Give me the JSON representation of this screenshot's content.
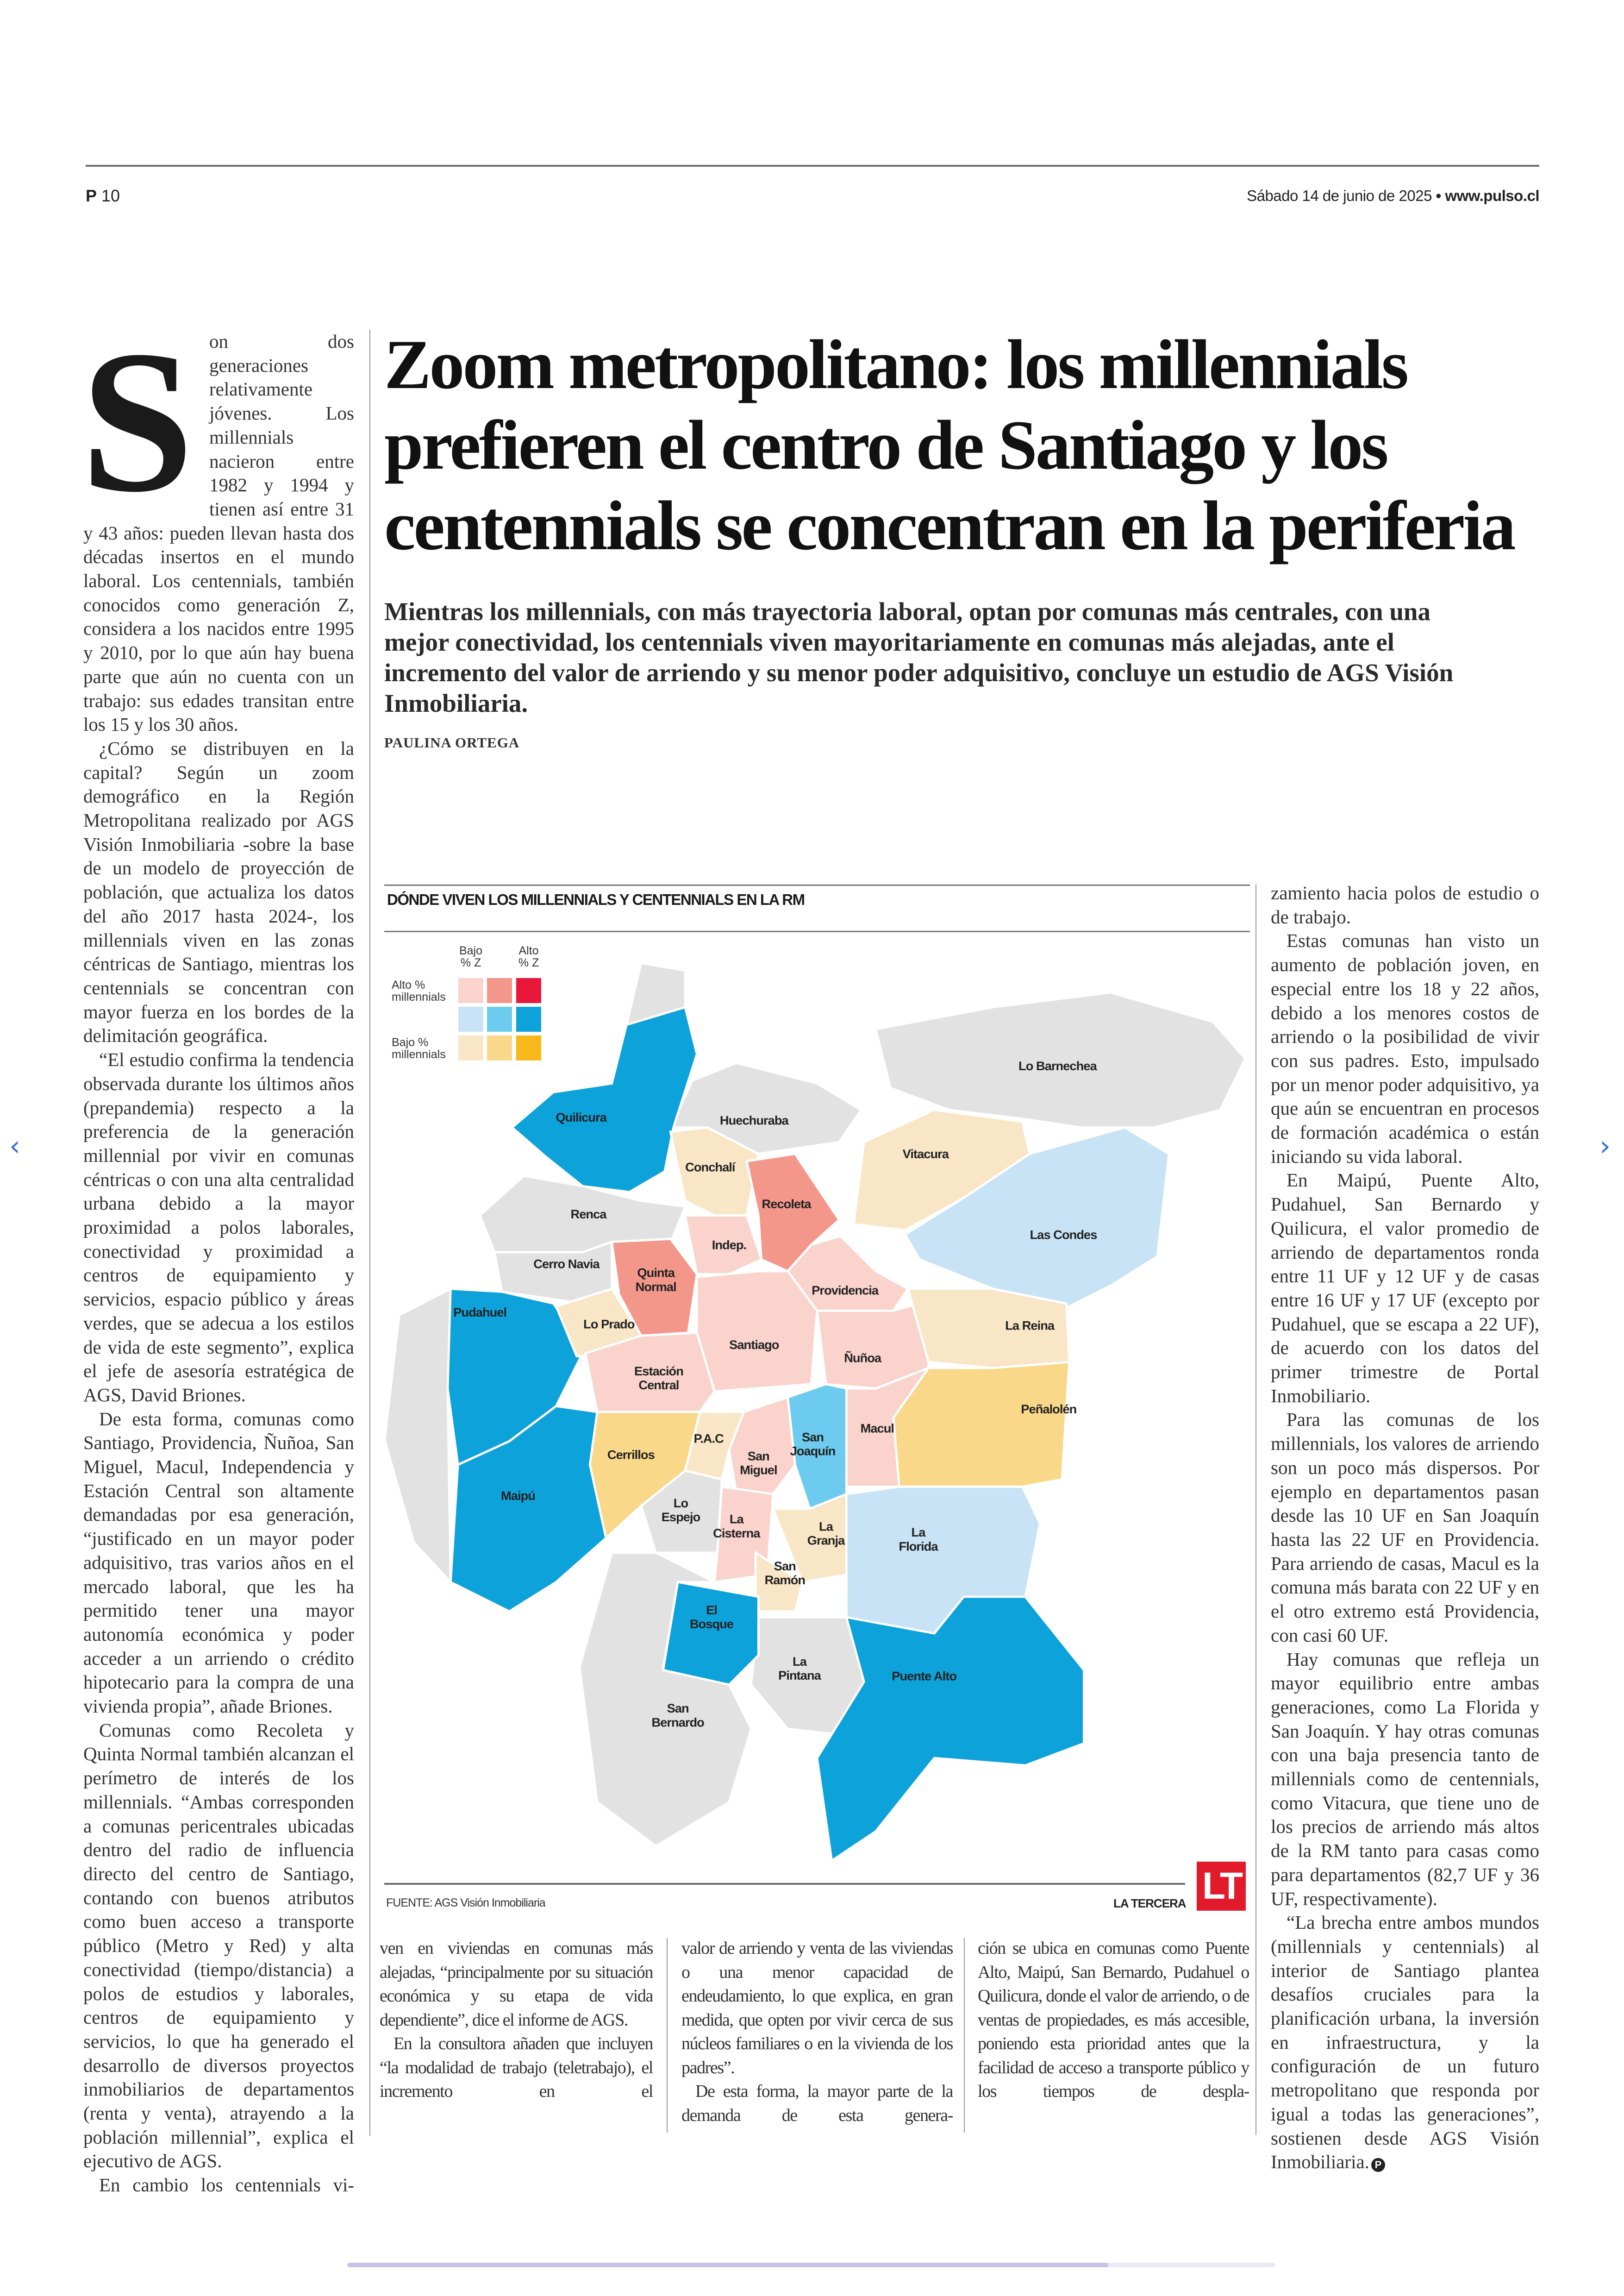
{
  "header": {
    "page_prefix": "P",
    "page_number": "10",
    "date": "Sábado 14 de junio de 2025",
    "separator": "•",
    "site": "www.pulso.cl"
  },
  "article": {
    "headline": "Zoom metropolitano: los millennials prefieren el centro de Santiago y los centennials se concentran en la periferia",
    "deck": "Mientras los millennials, con más trayectoria laboral, optan por comunas más centrales, con una mejor conectividad, los centennials viven mayoritariamente en comunas más alejadas, ante el incremento del valor de arriendo y su menor poder adquisitivo, concluye un estudio de AGS Visión Inmobiliaria.",
    "byline": "PAULINA ORTEGA",
    "drop_cap": "S",
    "left_column": [
      "on dos generaciones relativamente jóvenes. Los millennials nacieron entre 1982 y 1994 y tienen así entre 31 y 43 años: pueden llevan hasta dos décadas insertos en el mundo laboral. Los centennials, también conocidos como generación Z, considera a los nacidos entre 1995 y 2010, por lo que aún hay buena parte que aún no cuenta con un trabajo: sus edades transitan entre los 15 y los 30 años.",
      "¿Cómo se distribuyen en la capital? Según un zoom demográfico en la Región Metropolitana realizado por AGS Visión Inmobiliaria -sobre la base de un modelo de proyección de población, que actualiza los datos del año 2017 hasta 2024-, los millennials viven en las zonas céntricas de Santiago, mientras los centennials se concentran con mayor fuerza en los bordes de la delimitación geográfica.",
      "“El estudio confirma la tendencia observada durante los últimos años (prepandemia) respecto a la preferencia de la generación millennial por vivir en comunas céntricas o con una alta centralidad urbana debido a la mayor proximidad a polos laborales, conectividad y proximidad a centros de equipamiento y servicios, espacio público y áreas verdes, que se adecua a los estilos de vida de este segmento”, explica el jefe de asesoría estratégica de AGS, David Briones.",
      "De esta forma, comunas como Santiago, Providencia, Ñuñoa, San Miguel, Macul, Independencia y Estación Central son altamente demandadas por esa generación, “justificado en un mayor poder adquisitivo, tras varios años en el mercado laboral, que les ha permitido tener una mayor autonomía económica y poder acceder a un arriendo o crédito hipotecario para la compra de una vivienda propia”, añade Briones.",
      "Comunas como Recoleta y Quinta Normal también alcanzan el perímetro de interés de los millennials. “Ambas corresponden a comunas pericentrales ubicadas dentro del radio de influencia directo del centro de Santiago, contando con buenos atributos como buen acceso a transporte público (Metro y Red) y alta conectividad (tiempo/distancia) a polos de estudios y laborales, centros de equipamiento y servicios, lo que ha generado el desarrollo de diversos proyectos inmobiliarios de departamentos (renta y venta), atrayendo a la población millennial”, explica el ejecutivo de AGS.",
      "En cambio los centennials vi-"
    ],
    "bottom_col_1": [
      "ven en viviendas en comunas más alejadas, “principalmente por su situación económica y su etapa de vida dependiente”, dice el informe de AGS.",
      "En la consultora añaden que incluyen “la modalidad de trabajo (teletrabajo), el incremento en el"
    ],
    "bottom_col_2": [
      "valor de arriendo y venta de las viviendas o una menor capacidad de endeudamiento, lo que explica, en gran medida, que opten por vivir cerca de sus núcleos familiares o en la vivienda de los padres”.",
      "De esta forma, la mayor parte de la demanda de esta genera-"
    ],
    "bottom_col_3": [
      "ción se ubica en comunas como Puente Alto, Maipú, San Bernardo, Pudahuel o Quilicura, donde el valor de arriendo, o de ventas de propiedades, es más accesible, poniendo esta prioridad antes que la facilidad de acceso a transporte público y los tiempos de despla-"
    ],
    "right_column": [
      "zamiento hacia polos de estudio o de trabajo.",
      "Estas comunas han visto un aumento de población joven, en especial entre los 18 y 22 años, debido a los menores costos de arriendo o la posibilidad de vivir con sus padres. Esto, impulsado por un menor poder adquisitivo, ya que aún se encuentran en procesos de formación académica o están iniciando su vida laboral.",
      "En Maipú, Puente Alto, Pudahuel, San Bernardo y Quilicura, el valor promedio de arriendo de departamentos ronda entre 11 UF y 12 UF y de casas entre 16 UF y 17 UF (excepto por Pudahuel, que se escapa a 22 UF), de acuerdo con los datos del primer trimestre de Portal Inmobiliario.",
      "Para las comunas de los millennials, los valores de arriendo son un poco más dispersos. Por ejemplo en departamentos pasan desde las 10 UF en San Joaquín hasta las 22 UF en Providencia. Para arriendo de casas, Macul es la comuna más barata con 22 UF y en el otro extremo está Providencia, con casi 60 UF.",
      "Hay comunas que refleja un mayor equilibrio entre ambas generaciones, como La Florida y San Joaquín. Y hay otras comunas con una baja presencia tanto de millennials como de centennials, como Vitacura, que tiene uno de los precios de arriendo más altos de la RM tanto para casas como para departamentos (82,7 UF y 36 UF, respectivamente).",
      "“La brecha entre ambos mundos (millennials y centennials) al interior de Santiago plantea desafíos cruciales para la planificación urbana, la inversión en infraestructura, y la configuración de un futuro metropolitano que responda por igual a todas las generaciones”, sostienen desde AGS Visión Inmobiliaria."
    ],
    "end_mark": "P"
  },
  "graphic": {
    "title": "DÓNDE VIVEN LOS MILLENNIALS Y CENTENNIALS EN LA RM",
    "legend": {
      "col_low": "Bajo % Z",
      "col_high": "Alto % Z",
      "row_high": "Alto % millennials",
      "row_low": "Bajo % millennials",
      "colors": [
        [
          "#f9d3cc",
          "#f4978b",
          "#e8173a"
        ],
        [
          "#c7e3f5",
          "#6ccbee",
          "#0ea2da"
        ],
        [
          "#f8e6c6",
          "#fad88a",
          "#f7b919"
        ]
      ],
      "no_data_color": "#e2e2e2"
    },
    "comunas": [
      {
        "name": "Lo Barnechea",
        "cat": null
      },
      {
        "name": "Huechuraba",
        "cat": null
      },
      {
        "name": "Renca",
        "cat": null
      },
      {
        "name": "Cerro Navia",
        "cat": null
      },
      {
        "name": "Lo Espejo",
        "cat": null
      },
      {
        "name": "La Pintana",
        "cat": null
      },
      {
        "name": "San Bernardo",
        "cat": null
      },
      {
        "name": "Quilicura",
        "cat": [
          1,
          2
        ]
      },
      {
        "name": "Vitacura",
        "cat": [
          2,
          0
        ]
      },
      {
        "name": "Las Condes",
        "cat": [
          1,
          0
        ]
      },
      {
        "name": "Conchalí",
        "cat": [
          2,
          0
        ]
      },
      {
        "name": "Recoleta",
        "cat": [
          0,
          1
        ]
      },
      {
        "name": "Indep.",
        "cat": [
          0,
          0
        ]
      },
      {
        "name": "Quinta Normal",
        "cat": [
          0,
          1
        ]
      },
      {
        "name": "Providencia",
        "cat": [
          0,
          0
        ]
      },
      {
        "name": "Pudahuel",
        "cat": [
          1,
          2
        ]
      },
      {
        "name": "Lo Prado",
        "cat": [
          2,
          0
        ]
      },
      {
        "name": "Santiago",
        "cat": [
          0,
          0
        ]
      },
      {
        "name": "Ñuñoa",
        "cat": [
          0,
          0
        ]
      },
      {
        "name": "La Reina",
        "cat": [
          2,
          0
        ]
      },
      {
        "name": "Estación Central",
        "cat": [
          0,
          0
        ]
      },
      {
        "name": "Peñalolén",
        "cat": [
          2,
          1
        ]
      },
      {
        "name": "Macul",
        "cat": [
          0,
          0
        ]
      },
      {
        "name": "San Joaquín",
        "cat": [
          1,
          1
        ]
      },
      {
        "name": "San Miguel",
        "cat": [
          0,
          0
        ]
      },
      {
        "name": "P.A.C",
        "cat": [
          2,
          0
        ]
      },
      {
        "name": "Cerrillos",
        "cat": [
          2,
          1
        ]
      },
      {
        "name": "Maipú",
        "cat": [
          1,
          2
        ]
      },
      {
        "name": "La Cisterna",
        "cat": [
          0,
          0
        ]
      },
      {
        "name": "La Granja",
        "cat": [
          2,
          0
        ]
      },
      {
        "name": "San Ramón",
        "cat": [
          2,
          0
        ]
      },
      {
        "name": "La Florida",
        "cat": [
          1,
          0
        ]
      },
      {
        "name": "El Bosque",
        "cat": [
          1,
          2
        ]
      },
      {
        "name": "Puente Alto",
        "cat": [
          1,
          2
        ]
      }
    ],
    "source": "FUENTE: AGS Visión Inmobiliaria",
    "credit": "LA TERCERA",
    "logo": "LT",
    "logo_color": "#e21b2c"
  },
  "viewer": {
    "prev_icon": "chevron-left-icon",
    "next_icon": "chevron-right-icon",
    "scroll_progress": 0.82
  }
}
